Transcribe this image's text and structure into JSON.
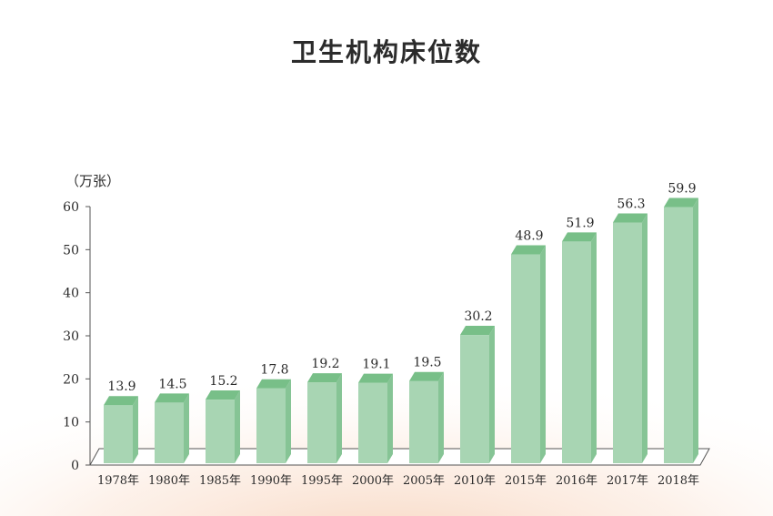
{
  "chart_data": {
    "type": "bar",
    "title": "卫生机构床位数",
    "ylabel": "（万张）",
    "xlabel": "",
    "categories": [
      "1978年",
      "1980年",
      "1985年",
      "1990年",
      "1995年",
      "2000年",
      "2005年",
      "2010年",
      "2015年",
      "2016年",
      "2017年",
      "2018年"
    ],
    "values": [
      13.9,
      14.5,
      15.2,
      17.8,
      19.2,
      19.1,
      19.5,
      30.2,
      48.9,
      51.9,
      56.3,
      59.9
    ],
    "ylim": [
      0,
      60
    ],
    "yticks": [
      0,
      10,
      20,
      30,
      40,
      50,
      60
    ],
    "grid": false,
    "colors": {
      "bar_front": "#a8d5b3",
      "bar_side": "#86c495",
      "bar_top": "#78bf88",
      "floor": "#ffffff",
      "axis": "#555555",
      "glow": "#f8dcc8"
    }
  }
}
